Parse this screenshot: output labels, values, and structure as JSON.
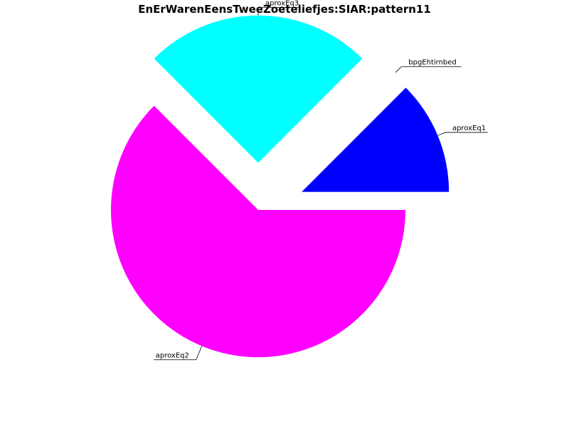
{
  "chart_data": {
    "type": "pie",
    "title": "EnErWarenEensTweeZoeteliefjes:SIAR:pattern11",
    "slices": [
      {
        "label": "aproxEq1",
        "value": 12.5,
        "color": "#0000ff",
        "exploded": true
      },
      {
        "label": "",
        "value": 0,
        "color": "#000000",
        "exploded": true
      },
      {
        "label": "aproxEq3",
        "value": 25,
        "color": "#00ffff",
        "exploded": true
      },
      {
        "label": "aproxEq2",
        "value": 62.5,
        "color": "#ff00ff",
        "exploded": false
      }
    ],
    "zero_labels_overlap_text": "bpgEhtirnbed"
  }
}
